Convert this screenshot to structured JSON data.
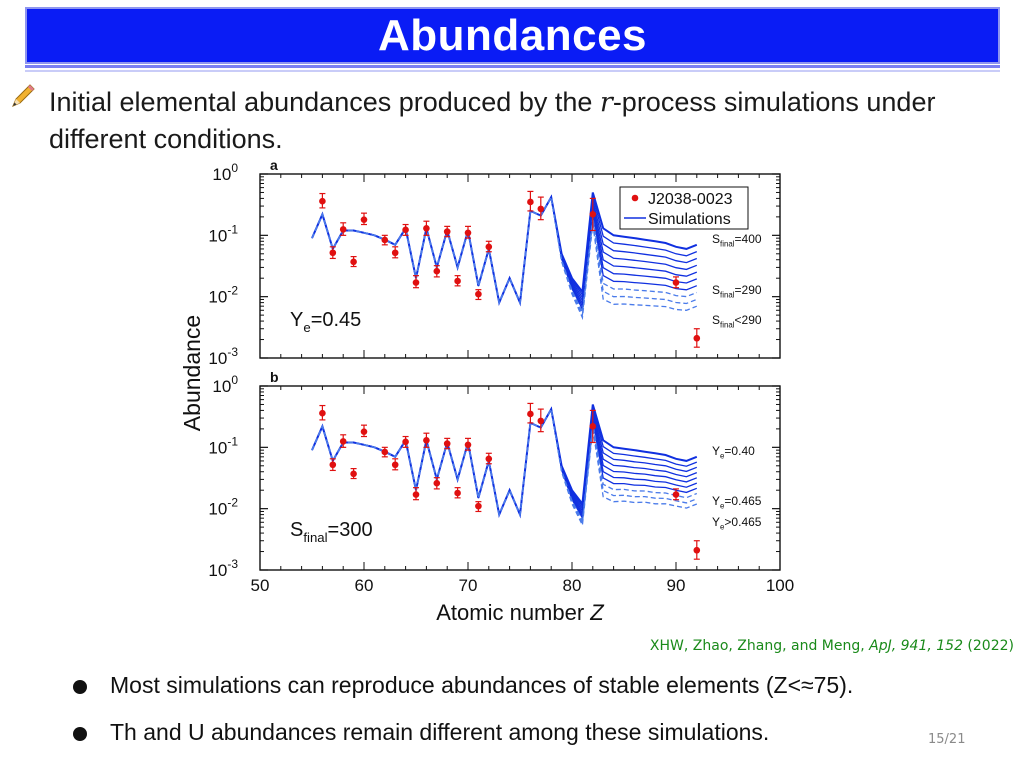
{
  "header": {
    "title": "Abundances"
  },
  "intro": {
    "part1": "Initial elemental abundances produced by the ",
    "var": "r",
    "part2": "-process simulations under different conditions."
  },
  "citation": {
    "authors": "XHW, Zhao, Zhang, and Meng, ",
    "journal": "ApJ, 941, 152",
    "year": " (2022)"
  },
  "bullets": [
    "Most simulations can reproduce abundances of stable elements (Z<≈75).",
    "Th and U abundances remain different among these simulations."
  ],
  "page": "15/21",
  "colors": {
    "title_bg": "#0a1cf5",
    "observed": "#e01010",
    "simulation": "#1030e0",
    "citation": "#1a8a1a"
  },
  "chart_data": {
    "type": "line",
    "ylabel": "Abundance",
    "xlabel": "Atomic number",
    "xlabel_var": "Z",
    "xlim": [
      50,
      100
    ],
    "xticks": [
      50,
      60,
      70,
      80,
      90,
      100
    ],
    "ylim_log10": [
      -3,
      0
    ],
    "legend": {
      "observed": "J2038-0023",
      "simulations": "Simulations",
      "position": "top-right"
    },
    "observed": {
      "name": "J2038-0023",
      "Z": [
        56,
        57,
        58,
        59,
        60,
        62,
        63,
        64,
        65,
        66,
        67,
        68,
        69,
        70,
        71,
        72,
        76,
        77,
        82,
        90,
        92
      ],
      "values": [
        0.36,
        0.052,
        0.125,
        0.037,
        0.18,
        0.084,
        0.052,
        0.123,
        0.017,
        0.13,
        0.026,
        0.115,
        0.018,
        0.11,
        0.011,
        0.065,
        0.35,
        0.27,
        0.22,
        0.017,
        0.0021
      ],
      "err_up": [
        0.48,
        0.065,
        0.16,
        0.045,
        0.23,
        0.1,
        0.065,
        0.15,
        0.022,
        0.17,
        0.032,
        0.14,
        0.022,
        0.14,
        0.013,
        0.08,
        0.52,
        0.42,
        0.4,
        0.021,
        0.003
      ],
      "err_down": [
        0.28,
        0.042,
        0.1,
        0.031,
        0.15,
        0.07,
        0.043,
        0.1,
        0.014,
        0.1,
        0.021,
        0.095,
        0.015,
        0.09,
        0.009,
        0.054,
        0.25,
        0.18,
        0.12,
        0.014,
        0.0015
      ]
    },
    "simulation_Z": [
      55,
      56,
      57,
      58,
      59,
      60,
      61,
      62,
      63,
      64,
      65,
      66,
      67,
      68,
      69,
      70,
      71,
      72,
      73,
      74,
      75,
      76,
      77,
      78,
      79,
      80,
      81,
      82,
      83,
      84,
      85,
      86,
      87,
      88,
      89,
      90,
      91,
      92
    ],
    "panels": [
      {
        "label": "a",
        "annotation_main": "Y",
        "annotation_sub": "e",
        "annotation_value": "=0.45",
        "simulation_base": [
          0.09,
          0.22,
          0.06,
          0.12,
          0.12,
          0.11,
          0.1,
          0.085,
          0.07,
          0.13,
          0.02,
          0.13,
          0.03,
          0.12,
          0.03,
          0.12,
          0.015,
          0.06,
          0.008,
          0.02,
          0.008,
          0.25,
          0.21,
          0.42,
          0.05,
          0.02,
          0.012,
          0.5,
          0.13,
          0.1,
          0.095,
          0.09,
          0.085,
          0.08,
          0.075,
          0.065,
          0.06,
          0.07
        ],
        "spread_Z": [
          78,
          79,
          80,
          81,
          82,
          83,
          84,
          85,
          86,
          87,
          88,
          89,
          90,
          91,
          92
        ],
        "spread_factor_lowest": [
          1.0,
          0.75,
          0.55,
          0.38,
          0.3,
          0.07,
          0.075,
          0.08,
          0.082,
          0.085,
          0.088,
          0.092,
          0.095,
          0.1,
          0.1
        ],
        "curve_count": 10,
        "dashed_count": 3,
        "series_labels": [
          {
            "main": "S",
            "sub": "final",
            "value": "=400"
          },
          {
            "main": "S",
            "sub": "final",
            "value": "=290"
          },
          {
            "main": "S",
            "sub": "final",
            "value": "<290"
          }
        ]
      },
      {
        "label": "b",
        "annotation_main": "S",
        "annotation_sub": "final",
        "annotation_value": "=300",
        "simulation_base": [
          0.09,
          0.22,
          0.06,
          0.12,
          0.12,
          0.11,
          0.1,
          0.085,
          0.07,
          0.13,
          0.02,
          0.13,
          0.03,
          0.12,
          0.03,
          0.12,
          0.015,
          0.06,
          0.008,
          0.02,
          0.008,
          0.25,
          0.21,
          0.42,
          0.05,
          0.02,
          0.012,
          0.5,
          0.13,
          0.1,
          0.095,
          0.09,
          0.085,
          0.08,
          0.075,
          0.065,
          0.06,
          0.07
        ],
        "spread_Z": [
          78,
          79,
          80,
          81,
          82,
          83,
          84,
          85,
          86,
          87,
          88,
          89,
          90,
          91,
          92
        ],
        "spread_factor_lowest": [
          1.0,
          0.8,
          0.6,
          0.45,
          0.4,
          0.12,
          0.13,
          0.14,
          0.14,
          0.15,
          0.15,
          0.16,
          0.17,
          0.17,
          0.17
        ],
        "curve_count": 10,
        "dashed_count": 3,
        "series_labels": [
          {
            "main": "Y",
            "sub": "e",
            "value": "=0.40"
          },
          {
            "main": "Y",
            "sub": "e",
            "value": "=0.465"
          },
          {
            "main": "Y",
            "sub": "e",
            "value": ">0.465"
          }
        ]
      }
    ]
  }
}
